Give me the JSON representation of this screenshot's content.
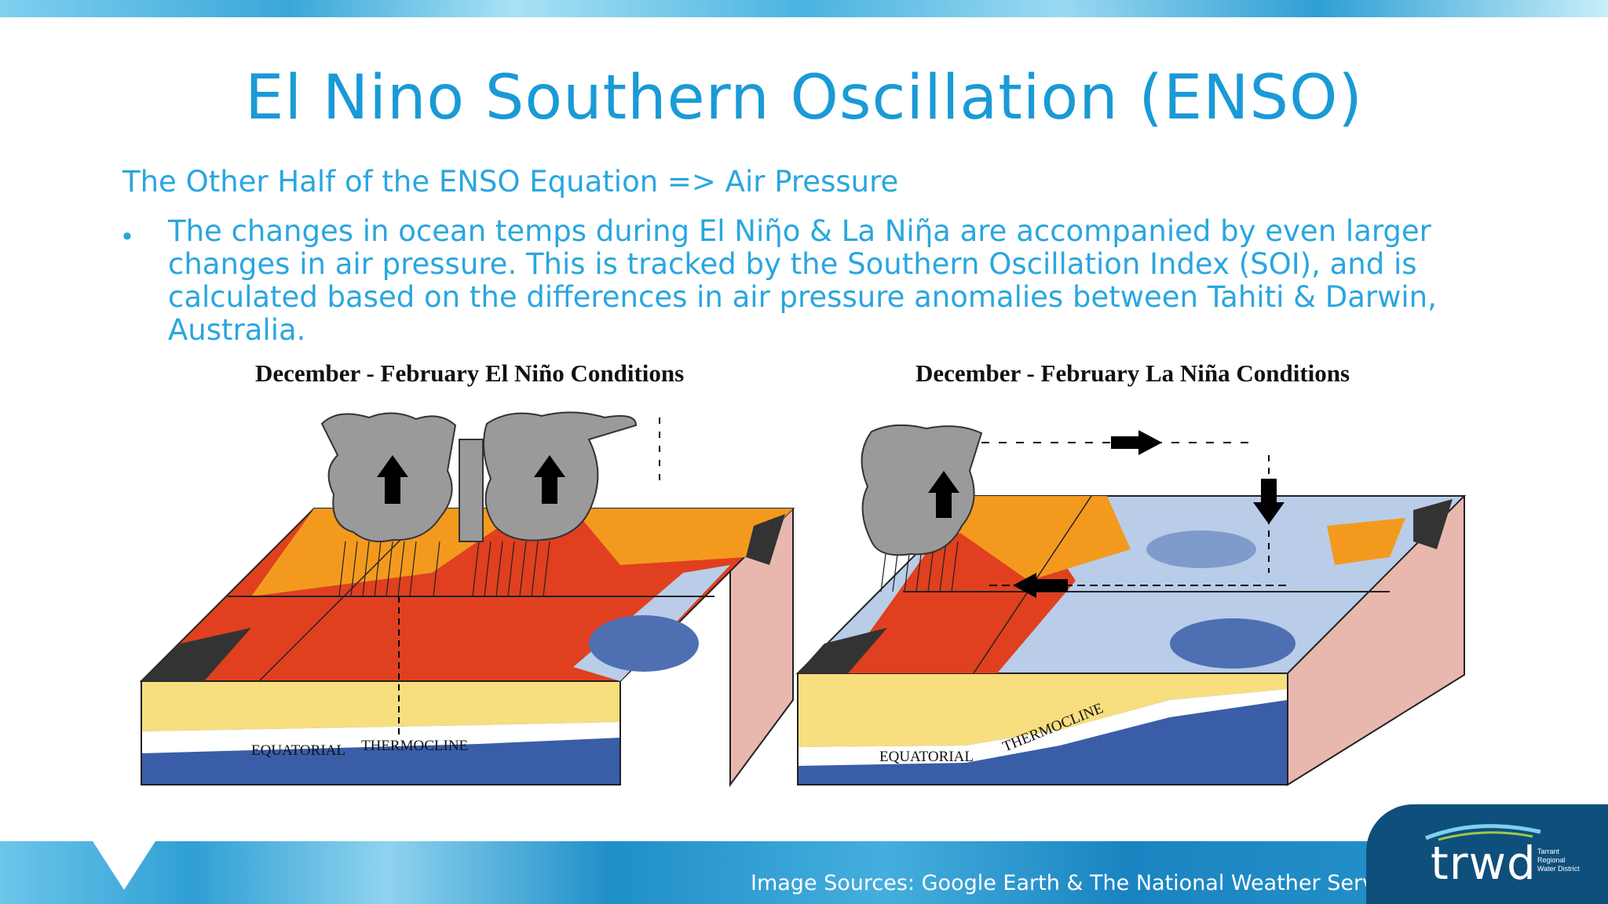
{
  "slide": {
    "title": "El Nino Southern Oscillation (ENSO)",
    "subtitle": "The Other Half of the ENSO Equation => Air Pressure",
    "bullet_symbol": "•",
    "bullet_text": "The changes in ocean temps during El Niῆo & La Niῆa are accompanied by even larger changes in air pressure.  This is tracked by the Southern Oscillation Index (SOI), and is calculated based on the differences in air pressure anomalies between Tahiti & Darwin, Australia."
  },
  "diagrams": {
    "left_title": "December - February El Niño Conditions",
    "right_title": "December - February La Niña Conditions",
    "left_label_equatorial": "EQUATORIAL",
    "left_label_thermocline": "THERMOCLINE",
    "right_label_equatorial": "EQUATORIAL",
    "right_label_thermocline": "THERMOCLINE"
  },
  "footer": {
    "source": "Image Sources: Google Earth & The National Weather Service",
    "logo": "trwd",
    "logo_small": "Tarrant Regional Water District"
  },
  "colors": {
    "title_blue": "#1a9ad6",
    "warm_red": "#e0401f",
    "warm_orange": "#f39a1e",
    "cool_blue": "#4f6fb3",
    "thermocline_dark": "#3a5da8",
    "upper_layer": "#f7de7e",
    "side_pink": "#e8b8ae",
    "cloud_gray": "#9a9a9a",
    "logo_navy": "#0f4f7c"
  },
  "icons": [
    "cloud-icon",
    "up-arrow-icon",
    "down-arrow-icon",
    "right-arrow-icon",
    "left-arrow-icon"
  ]
}
